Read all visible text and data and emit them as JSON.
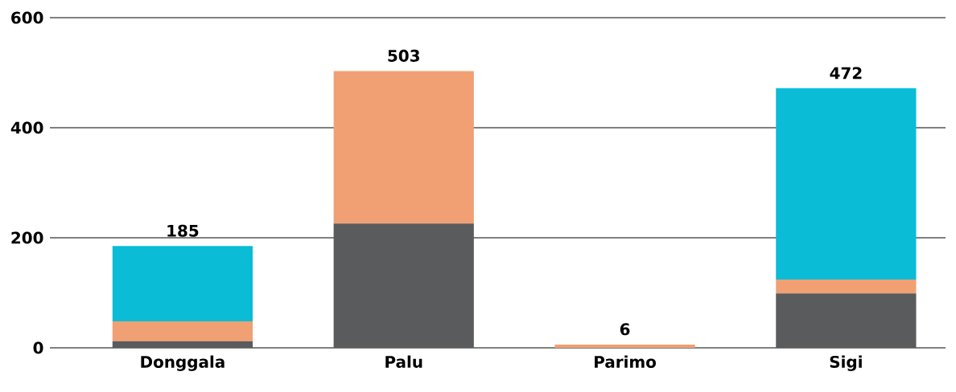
{
  "chart_data": {
    "type": "bar",
    "stacked": true,
    "categories": [
      "Donggala",
      "Palu",
      "Parimo",
      "Sigi"
    ],
    "series": [
      {
        "color": "#5a5b5d",
        "values": [
          12,
          226,
          0,
          99
        ]
      },
      {
        "color": "#f0a073",
        "values": [
          36,
          277,
          6,
          25
        ]
      },
      {
        "color": "#0abcd6",
        "values": [
          137,
          0,
          0,
          348
        ]
      }
    ],
    "totals": [
      "185",
      "503",
      "6",
      "472"
    ],
    "ylim": [
      0,
      600
    ],
    "yticks": [
      0,
      200,
      400,
      600
    ],
    "grid": "y"
  }
}
